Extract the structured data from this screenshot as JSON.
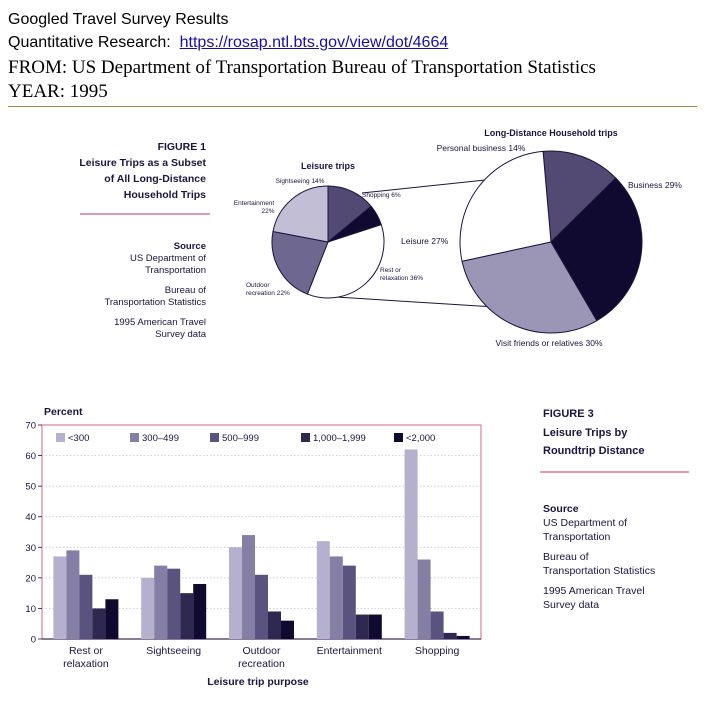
{
  "header": {
    "line1": "Googled Travel Survey Results",
    "line2_prefix": "Quantitative Research:",
    "line2_link": "https://rosap.ntl.bts.gov/view/dot/4664",
    "line3": "FROM: US Department of Transportation  Bureau of Transportation Statistics",
    "line4": "YEAR: 1995"
  },
  "figure1": {
    "label": "FIGURE 1",
    "title_lines": [
      "Leisure Trips as a Subset",
      "of All Long-Distance",
      "Household Trips"
    ],
    "source_label": "Source",
    "source_lines": [
      "US Department of",
      "Transportation",
      "Bureau of",
      "Transportation Statistics",
      "1995 American Travel",
      "Survey data"
    ]
  },
  "figure3": {
    "label": "FIGURE 3",
    "title_lines": [
      "Leisure Trips by",
      "Roundtrip Distance"
    ],
    "source_label": "Source",
    "source_lines": [
      "US Department of",
      "Transportation",
      "Bureau of",
      "Transportation Statistics",
      "1995 American Travel",
      "Survey data"
    ]
  },
  "chart_data": [
    {
      "type": "pie",
      "title": "Leisure trips",
      "slices": [
        {
          "label": "Sightseeing 14%",
          "value": 14,
          "color": "#524a72"
        },
        {
          "label": "Shopping 6%",
          "value": 6,
          "color": "#100a30"
        },
        {
          "label": "Rest or relaxation 36%",
          "value": 36,
          "color": "#ffffff"
        },
        {
          "label": "Outdoor recreation 22%",
          "value": 22,
          "color": "#6e6890"
        },
        {
          "label": "Entertainment 22%",
          "value": 22,
          "color": "#c2bed6"
        }
      ]
    },
    {
      "type": "pie",
      "title": "Long-Distance Household trips",
      "slices": [
        {
          "label": "Personal business 14%",
          "value": 14,
          "color": "#524a72"
        },
        {
          "label": "Business 29%",
          "value": 29,
          "color": "#100a30"
        },
        {
          "label": "Visit friends or relatives 30%",
          "value": 30,
          "color": "#9b96b6"
        },
        {
          "label": "Leisure 27%",
          "value": 27,
          "color": "#ffffff"
        }
      ]
    },
    {
      "type": "bar",
      "ylabel": "Percent",
      "xlabel": "Leisure trip purpose",
      "ylim": [
        0,
        70
      ],
      "yticks": [
        0,
        10,
        20,
        30,
        40,
        50,
        60,
        70
      ],
      "grid": true,
      "legend_position": "top",
      "categories": [
        "Rest or relaxation",
        "Sightseeing",
        "Outdoor recreation",
        "Entertainment",
        "Shopping"
      ],
      "category_lines": [
        [
          "Rest or",
          "relaxation"
        ],
        [
          "Sightseeing"
        ],
        [
          "Outdoor",
          "recreation"
        ],
        [
          "Entertainment"
        ],
        [
          "Shopping"
        ]
      ],
      "series": [
        {
          "name": "<300",
          "color": "#b4b0ce",
          "values": [
            27,
            20,
            30,
            32,
            62
          ]
        },
        {
          "name": "300–499",
          "color": "#857fa6",
          "values": [
            29,
            24,
            34,
            27,
            26
          ]
        },
        {
          "name": "500–999",
          "color": "#5a5380",
          "values": [
            21,
            23,
            21,
            24,
            9
          ]
        },
        {
          "name": "1,000–1,999",
          "color": "#2f2850",
          "values": [
            10,
            15,
            9,
            8,
            2
          ]
        },
        {
          "name": "<2,000",
          "color": "#100a30",
          "values": [
            13,
            18,
            6,
            8,
            1
          ]
        }
      ]
    }
  ]
}
